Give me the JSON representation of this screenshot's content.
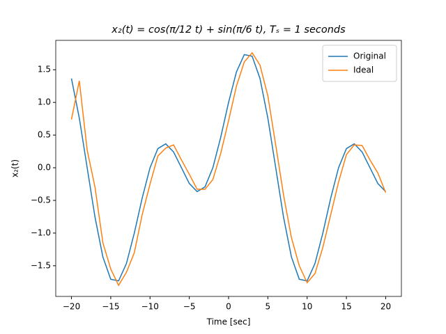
{
  "chart_data": {
    "type": "line",
    "title": "x₂(t) = cos(π/12 t) + sin(π/6 t), Tₛ = 1 seconds",
    "x_label": "Time [sec]",
    "y_label": "x₂(t)",
    "x": [
      -20,
      -19,
      -18,
      -17,
      -16,
      -15,
      -14,
      -13,
      -12,
      -11,
      -10,
      -9,
      -8,
      -7,
      -6,
      -5,
      -4,
      -3,
      -2,
      -1,
      0,
      1,
      2,
      3,
      4,
      5,
      6,
      7,
      8,
      9,
      10,
      11,
      12,
      13,
      14,
      15,
      16,
      17,
      18,
      19,
      20
    ],
    "series": [
      {
        "name": "Original",
        "color": "#1f77b4",
        "values": [
          1.366,
          0.759,
          0,
          -0.759,
          -1.366,
          -1.707,
          -1.732,
          -1.466,
          -1,
          -0.466,
          0,
          0.293,
          0.366,
          0.241,
          0,
          -0.241,
          -0.366,
          -0.293,
          0,
          0.466,
          1,
          1.466,
          1.732,
          1.707,
          1.366,
          0.759,
          0,
          -0.759,
          -1.366,
          -1.707,
          -1.732,
          -1.466,
          -1,
          -0.466,
          0,
          0.293,
          0.366,
          0.241,
          0,
          -0.241,
          -0.366
        ]
      },
      {
        "name": "Ideal",
        "color": "#ff7f0e",
        "values": [
          0.74,
          1.33,
          0.27,
          -0.3,
          -1.15,
          -1.55,
          -1.8,
          -1.6,
          -1.3,
          -0.72,
          -0.25,
          0.18,
          0.3,
          0.35,
          0.12,
          -0.1,
          -0.33,
          -0.33,
          -0.18,
          0.22,
          0.72,
          1.25,
          1.62,
          1.76,
          1.57,
          1.1,
          0.35,
          -0.42,
          -1.07,
          -1.5,
          -1.76,
          -1.62,
          -1.22,
          -0.72,
          -0.22,
          0.2,
          0.35,
          0.34,
          0.12,
          -0.08,
          -0.38
        ]
      }
    ],
    "xlim": [
      -22,
      22
    ],
    "ylim": [
      -1.97,
      1.95
    ],
    "xticks": [
      {
        "value": -20,
        "label": "−20"
      },
      {
        "value": -15,
        "label": "−15"
      },
      {
        "value": -10,
        "label": "−10"
      },
      {
        "value": -5,
        "label": "−5"
      },
      0,
      5,
      10,
      15,
      20
    ],
    "yticks": [
      {
        "value": -1.5,
        "label": "−1.5"
      },
      {
        "value": -1,
        "label": "−1.0"
      },
      {
        "value": -0.5,
        "label": "−0.5"
      },
      {
        "value": 0,
        "label": "0.0"
      },
      0.5,
      {
        "value": 1,
        "label": "1.0"
      },
      1.5
    ],
    "legend": "upper right",
    "grid": false
  }
}
